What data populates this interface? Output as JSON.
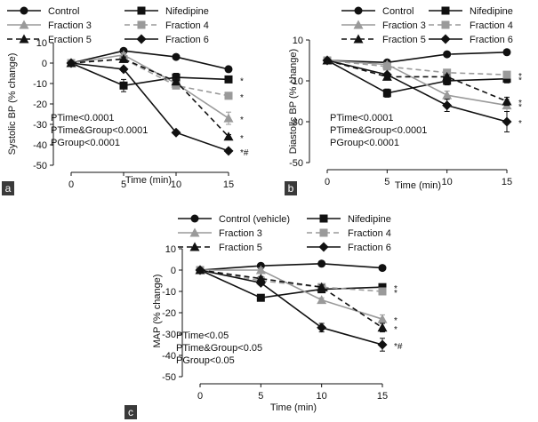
{
  "chart_data": [
    {
      "panel_label": "a",
      "type": "line",
      "ylabel": "Systolic BP (% change)",
      "xlabel": "Time (min)",
      "x": [
        0,
        5,
        10,
        15
      ],
      "x_tick_labels": [
        "0",
        "5",
        "10",
        "15"
      ],
      "ylim": [
        -50,
        10
      ],
      "y_ticks": [
        10,
        0,
        -10,
        -20,
        -30,
        -40,
        -50
      ],
      "y_tick_labels": [
        "10",
        "0",
        "-10",
        "-20",
        "-30",
        "-40",
        "-50"
      ],
      "series": [
        {
          "name": "Control",
          "values": [
            0,
            6,
            3,
            -3
          ],
          "errors": [
            0,
            1,
            1,
            1
          ]
        },
        {
          "name": "Nifedipine",
          "values": [
            0,
            -11,
            -7,
            -8
          ],
          "errors": [
            0,
            3,
            2,
            1
          ]
        },
        {
          "name": "Fraction 3",
          "values": [
            0,
            4,
            -10,
            -27
          ],
          "errors": [
            0,
            1,
            2,
            3
          ]
        },
        {
          "name": "Fraction 4",
          "values": [
            0,
            2,
            -11,
            -16
          ],
          "errors": [
            0,
            1,
            1,
            1
          ]
        },
        {
          "name": "Fraction 5",
          "values": [
            0,
            2,
            -9,
            -36
          ],
          "errors": [
            0,
            1,
            1,
            1
          ]
        },
        {
          "name": "Fraction 6",
          "values": [
            0,
            -3,
            -34,
            -43
          ],
          "errors": [
            0,
            1,
            1,
            1
          ]
        }
      ],
      "significance": [
        "*",
        "*",
        "*",
        "*",
        "*#"
      ],
      "stats": [
        "PTime<0.0001",
        "PTime&Group<0.0001",
        "PGroup<0.0001"
      ]
    },
    {
      "panel_label": "b",
      "type": "line",
      "ylabel": "Diastolic BP (% change)",
      "xlabel": "Time (min)",
      "x": [
        0,
        5,
        10,
        15
      ],
      "x_tick_labels": [
        "0",
        "5",
        "10",
        "15"
      ],
      "ylim": [
        -50,
        10
      ],
      "y_ticks": [
        10,
        -10,
        -30,
        -50
      ],
      "y_tick_labels": [
        "10",
        "-10",
        "-30",
        "-50"
      ],
      "series": [
        {
          "name": "Control",
          "values": [
            0,
            -1,
            3,
            4
          ],
          "errors": [
            0,
            1,
            1,
            1
          ]
        },
        {
          "name": "Nifedipine",
          "values": [
            0,
            -16,
            -10,
            -9
          ],
          "errors": [
            0,
            2,
            2,
            2
          ]
        },
        {
          "name": "Fraction 3",
          "values": [
            0,
            -2,
            -17,
            -22
          ],
          "errors": [
            0,
            1,
            2,
            3
          ]
        },
        {
          "name": "Fraction 4",
          "values": [
            0,
            -3,
            -6,
            -7
          ],
          "errors": [
            0,
            1,
            1,
            1
          ]
        },
        {
          "name": "Fraction 5",
          "values": [
            0,
            -8,
            -8,
            -20
          ],
          "errors": [
            0,
            1,
            1,
            2
          ]
        },
        {
          "name": "Fraction 6",
          "values": [
            0,
            -7,
            -22,
            -30
          ],
          "errors": [
            0,
            1,
            3,
            5
          ]
        }
      ],
      "significance": [
        "*",
        "*",
        "*",
        "*",
        "*"
      ],
      "stats": [
        "PTime<0.0001",
        "PTime&Group<0.0001",
        "PGroup<0.0001"
      ]
    },
    {
      "panel_label": "c",
      "type": "line",
      "ylabel": "MAP (% change)",
      "xlabel": "Time (min)",
      "x": [
        0,
        5,
        10,
        15
      ],
      "x_tick_labels": [
        "0",
        "5",
        "10",
        "15"
      ],
      "ylim": [
        -50,
        10
      ],
      "y_ticks": [
        10,
        0,
        -10,
        -20,
        -30,
        -40,
        -50
      ],
      "y_tick_labels": [
        "10",
        "0",
        "-10",
        "-20",
        "-30",
        "-40",
        "-50"
      ],
      "series": [
        {
          "name": "Control (vehicle)",
          "values": [
            0,
            2,
            3,
            1
          ],
          "errors": [
            0,
            1,
            1,
            1
          ]
        },
        {
          "name": "Nifedipine",
          "values": [
            0,
            -13,
            -9,
            -8
          ],
          "errors": [
            0,
            1,
            1,
            1
          ]
        },
        {
          "name": "Fraction 3",
          "values": [
            0,
            0,
            -14,
            -23
          ],
          "errors": [
            0,
            1,
            1,
            2
          ]
        },
        {
          "name": "Fraction 4",
          "values": [
            0,
            -5,
            -8,
            -10
          ],
          "errors": [
            0,
            1,
            1,
            1
          ]
        },
        {
          "name": "Fraction 5",
          "values": [
            0,
            -4,
            -8,
            -27
          ],
          "errors": [
            0,
            1,
            1,
            2
          ]
        },
        {
          "name": "Fraction 6",
          "values": [
            0,
            -6,
            -27,
            -35
          ],
          "errors": [
            0,
            1,
            2,
            3
          ]
        }
      ],
      "significance": [
        "*",
        "*",
        "*",
        "*",
        "*#"
      ],
      "stats": [
        "PTime<0.05",
        "PTime&Group<0.05",
        "PGroup<0.05"
      ]
    }
  ],
  "series_styles": [
    {
      "color": "#111111",
      "dash": "",
      "marker": "circle"
    },
    {
      "color": "#111111",
      "dash": "",
      "marker": "square"
    },
    {
      "color": "#9a9a9a",
      "dash": "",
      "marker": "triangle"
    },
    {
      "color": "#9a9a9a",
      "dash": "6,4",
      "marker": "square"
    },
    {
      "color": "#111111",
      "dash": "6,4",
      "marker": "triangle"
    },
    {
      "color": "#111111",
      "dash": "",
      "marker": "diamond"
    }
  ]
}
